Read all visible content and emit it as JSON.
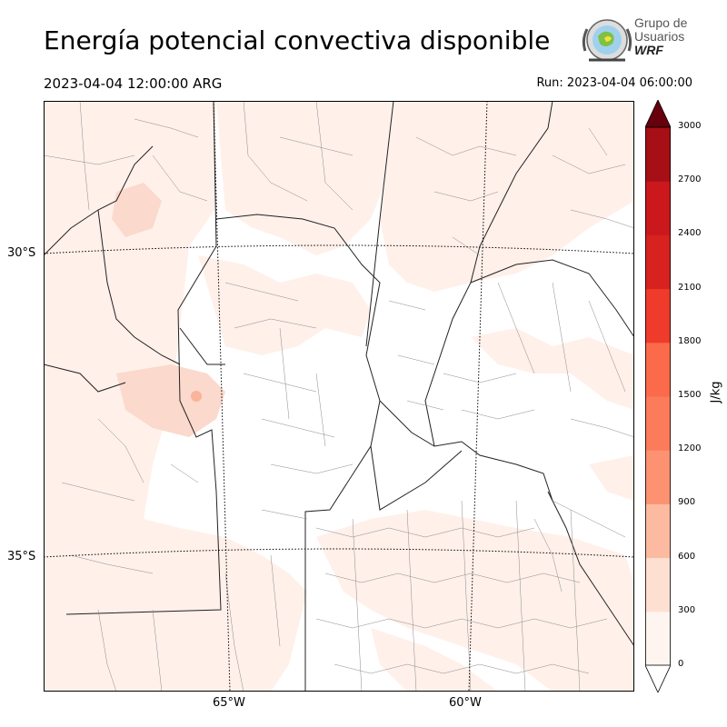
{
  "header": {
    "title": "Energía potencial convectiva disponible",
    "valid_time": "2023-04-04 12:00:00 ARG",
    "run_time": "Run: 2023-04-04 06:00:00"
  },
  "logo": {
    "line1": "Grupo de",
    "line2": "Usuarios",
    "line3": "WRF"
  },
  "map": {
    "lat_labels": [
      "30°S",
      "35°S"
    ],
    "lon_labels": [
      "65°W",
      "60°W"
    ]
  },
  "colorbar": {
    "unit": "J/kg",
    "ticks": [
      "0",
      "300",
      "600",
      "900",
      "1200",
      "1500",
      "1800",
      "2100",
      "2400",
      "2700",
      "3000"
    ],
    "colors": [
      "#fff5f0",
      "#fee0d2",
      "#fcbba1",
      "#fc9272",
      "#fb7b5b",
      "#fb6a4a",
      "#ef3b2c",
      "#d7221f",
      "#cb181d",
      "#a50f15",
      "#67000d"
    ]
  }
}
